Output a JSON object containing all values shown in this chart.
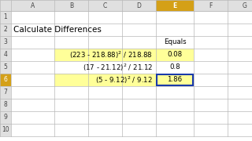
{
  "title": "Calculate Differences",
  "col_header": "Equals",
  "rows": [
    {
      "formula_parts": [
        "(223 - 218.88)",
        "2",
        " / 218.88"
      ],
      "value": "0.08",
      "highlight": true,
      "box": false
    },
    {
      "formula_parts": [
        "(17 - 21.12)",
        "2",
        " / 21.12"
      ],
      "value": "0.8",
      "highlight": false,
      "box": false
    },
    {
      "formula_parts": [
        "(5 - 9.12)",
        "2",
        " / 9.12"
      ],
      "value": "1.86",
      "highlight": true,
      "box": true
    }
  ],
  "bg_color": "#ffffff",
  "grid_color": "#b8b8b8",
  "highlight_color": "#ffff99",
  "row_header_bg": "#e0e0e0",
  "col_header_bg": "#e0e0e0",
  "col_e_header_bg": "#d4a017",
  "col_e_header_text": "#ffffff",
  "box_color": "#1a3aaa",
  "title_fontsize": 7.5,
  "formula_fontsize": 6.2,
  "value_fontsize": 6.2,
  "header_fontsize": 5.5,
  "col_letters": [
    "A",
    "B",
    "C",
    "D",
    "E",
    "F",
    "G"
  ],
  "row_numbers": [
    "1",
    "2",
    "3",
    "4",
    "5",
    "6",
    "7",
    "8",
    "9",
    "10"
  ],
  "scrollbar_color": "#d0d8e8"
}
